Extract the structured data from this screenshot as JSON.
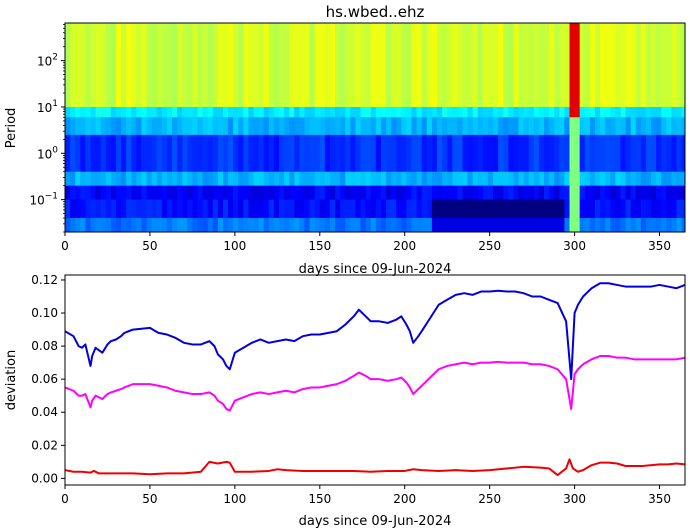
{
  "chart_data": [
    {
      "type": "heatmap",
      "title": "hs.wbed..ehz",
      "xlabel": "days since 09-Jun-2024",
      "ylabel": "Period",
      "xlim": [
        0,
        365
      ],
      "ylim": [
        0.02,
        650
      ],
      "yscale": "log",
      "xticks": [
        0,
        50,
        100,
        150,
        200,
        250,
        300,
        350
      ],
      "yticks": [
        {
          "value": 0.1,
          "base": "10",
          "exp": "−1"
        },
        {
          "value": 1,
          "base": "10",
          "exp": "0"
        },
        {
          "value": 10,
          "base": "10",
          "exp": "1"
        },
        {
          "value": 100,
          "base": "10",
          "exp": "2"
        }
      ],
      "colormap": "jet",
      "grid": false,
      "period_bands": [
        {
          "from": 10,
          "to": 650,
          "level": 0.58
        },
        {
          "from": 6,
          "to": 10,
          "level": 0.36
        },
        {
          "from": 2.5,
          "to": 6,
          "level": 0.3
        },
        {
          "from": 0.4,
          "to": 2.5,
          "level": 0.17
        },
        {
          "from": 0.2,
          "to": 0.4,
          "level": 0.3
        },
        {
          "from": 0.1,
          "to": 0.2,
          "level": 0.12
        },
        {
          "from": 0.04,
          "to": 0.1,
          "level": 0.14
        },
        {
          "from": 0.02,
          "to": 0.04,
          "level": 0.24
        }
      ],
      "event": {
        "day": 298,
        "level": 0.9
      }
    },
    {
      "type": "line",
      "title": "",
      "xlabel": "days since 09-Jun-2024",
      "ylabel": "deviation",
      "xlim": [
        0,
        365
      ],
      "ylim": [
        -0.004,
        0.123
      ],
      "xticks": [
        0,
        50,
        100,
        150,
        200,
        250,
        300,
        350
      ],
      "yticks": [
        "0.00",
        "0.02",
        "0.04",
        "0.06",
        "0.08",
        "0.10",
        "0.12"
      ],
      "grid": false,
      "series": [
        {
          "color": "#0000dd",
          "x": [
            0,
            5,
            8,
            10,
            12,
            15,
            16,
            18,
            22,
            25,
            27,
            30,
            33,
            35,
            40,
            45,
            50,
            55,
            60,
            65,
            70,
            75,
            80,
            85,
            88,
            90,
            93,
            95,
            97,
            100,
            105,
            110,
            115,
            120,
            125,
            130,
            135,
            140,
            145,
            150,
            155,
            160,
            165,
            170,
            173,
            177,
            180,
            185,
            190,
            195,
            198,
            201,
            203,
            205,
            208,
            210,
            215,
            220,
            225,
            230,
            235,
            240,
            245,
            250,
            255,
            260,
            265,
            270,
            275,
            280,
            285,
            290,
            295,
            298,
            300,
            302,
            305,
            310,
            315,
            320,
            325,
            330,
            335,
            340,
            345,
            350,
            355,
            360,
            365
          ],
          "y": [
            0.089,
            0.086,
            0.08,
            0.079,
            0.081,
            0.068,
            0.074,
            0.079,
            0.076,
            0.081,
            0.083,
            0.084,
            0.086,
            0.088,
            0.09,
            0.0905,
            0.091,
            0.088,
            0.087,
            0.085,
            0.082,
            0.081,
            0.081,
            0.083,
            0.08,
            0.075,
            0.072,
            0.068,
            0.066,
            0.076,
            0.079,
            0.082,
            0.084,
            0.082,
            0.083,
            0.084,
            0.083,
            0.086,
            0.087,
            0.087,
            0.088,
            0.089,
            0.093,
            0.098,
            0.102,
            0.098,
            0.095,
            0.095,
            0.094,
            0.096,
            0.098,
            0.093,
            0.089,
            0.082,
            0.086,
            0.089,
            0.097,
            0.105,
            0.108,
            0.111,
            0.112,
            0.111,
            0.113,
            0.113,
            0.1135,
            0.113,
            0.113,
            0.112,
            0.11,
            0.11,
            0.108,
            0.106,
            0.095,
            0.06,
            0.1,
            0.105,
            0.11,
            0.115,
            0.118,
            0.118,
            0.117,
            0.116,
            0.116,
            0.116,
            0.116,
            0.117,
            0.116,
            0.115,
            0.117
          ]
        },
        {
          "color": "#ff00ff",
          "x": [
            0,
            5,
            8,
            10,
            12,
            15,
            16,
            18,
            22,
            25,
            27,
            30,
            33,
            35,
            40,
            45,
            50,
            55,
            60,
            65,
            70,
            75,
            80,
            85,
            88,
            90,
            93,
            95,
            97,
            100,
            105,
            110,
            115,
            120,
            125,
            130,
            135,
            140,
            145,
            150,
            155,
            160,
            165,
            170,
            173,
            177,
            180,
            185,
            190,
            195,
            198,
            201,
            203,
            205,
            208,
            210,
            215,
            220,
            225,
            230,
            235,
            240,
            245,
            250,
            255,
            260,
            265,
            270,
            275,
            280,
            285,
            290,
            295,
            298,
            300,
            302,
            305,
            310,
            315,
            320,
            325,
            330,
            335,
            340,
            345,
            350,
            355,
            360,
            365
          ],
          "y": [
            0.055,
            0.053,
            0.05,
            0.05,
            0.051,
            0.043,
            0.047,
            0.05,
            0.048,
            0.051,
            0.052,
            0.053,
            0.054,
            0.055,
            0.057,
            0.057,
            0.057,
            0.056,
            0.055,
            0.053,
            0.052,
            0.051,
            0.051,
            0.052,
            0.05,
            0.047,
            0.045,
            0.042,
            0.041,
            0.047,
            0.049,
            0.051,
            0.052,
            0.051,
            0.052,
            0.053,
            0.052,
            0.054,
            0.055,
            0.055,
            0.056,
            0.057,
            0.059,
            0.062,
            0.064,
            0.062,
            0.06,
            0.06,
            0.059,
            0.06,
            0.061,
            0.058,
            0.055,
            0.051,
            0.054,
            0.056,
            0.061,
            0.066,
            0.068,
            0.069,
            0.07,
            0.069,
            0.07,
            0.07,
            0.0705,
            0.07,
            0.07,
            0.07,
            0.069,
            0.069,
            0.068,
            0.066,
            0.06,
            0.042,
            0.063,
            0.066,
            0.069,
            0.072,
            0.074,
            0.074,
            0.073,
            0.073,
            0.072,
            0.072,
            0.072,
            0.072,
            0.072,
            0.072,
            0.073
          ]
        },
        {
          "color": "#ee0000",
          "x": [
            0,
            5,
            10,
            15,
            17,
            20,
            25,
            30,
            40,
            50,
            60,
            70,
            80,
            85,
            90,
            95,
            97,
            100,
            110,
            120,
            125,
            130,
            140,
            150,
            160,
            170,
            180,
            190,
            200,
            205,
            210,
            220,
            230,
            240,
            250,
            260,
            270,
            280,
            285,
            290,
            295,
            297,
            299,
            302,
            305,
            310,
            315,
            320,
            325,
            330,
            340,
            350,
            355,
            360,
            365
          ],
          "y": [
            0.005,
            0.004,
            0.004,
            0.0035,
            0.0045,
            0.003,
            0.003,
            0.003,
            0.003,
            0.0025,
            0.003,
            0.003,
            0.004,
            0.01,
            0.009,
            0.01,
            0.0095,
            0.004,
            0.004,
            0.0045,
            0.0055,
            0.005,
            0.0045,
            0.0045,
            0.0045,
            0.0045,
            0.004,
            0.0045,
            0.0045,
            0.0055,
            0.005,
            0.0045,
            0.005,
            0.0045,
            0.005,
            0.006,
            0.007,
            0.0065,
            0.006,
            0.002,
            0.006,
            0.0115,
            0.006,
            0.004,
            0.005,
            0.008,
            0.0095,
            0.0095,
            0.009,
            0.0075,
            0.0075,
            0.0085,
            0.0085,
            0.009,
            0.0085
          ]
        }
      ]
    }
  ]
}
